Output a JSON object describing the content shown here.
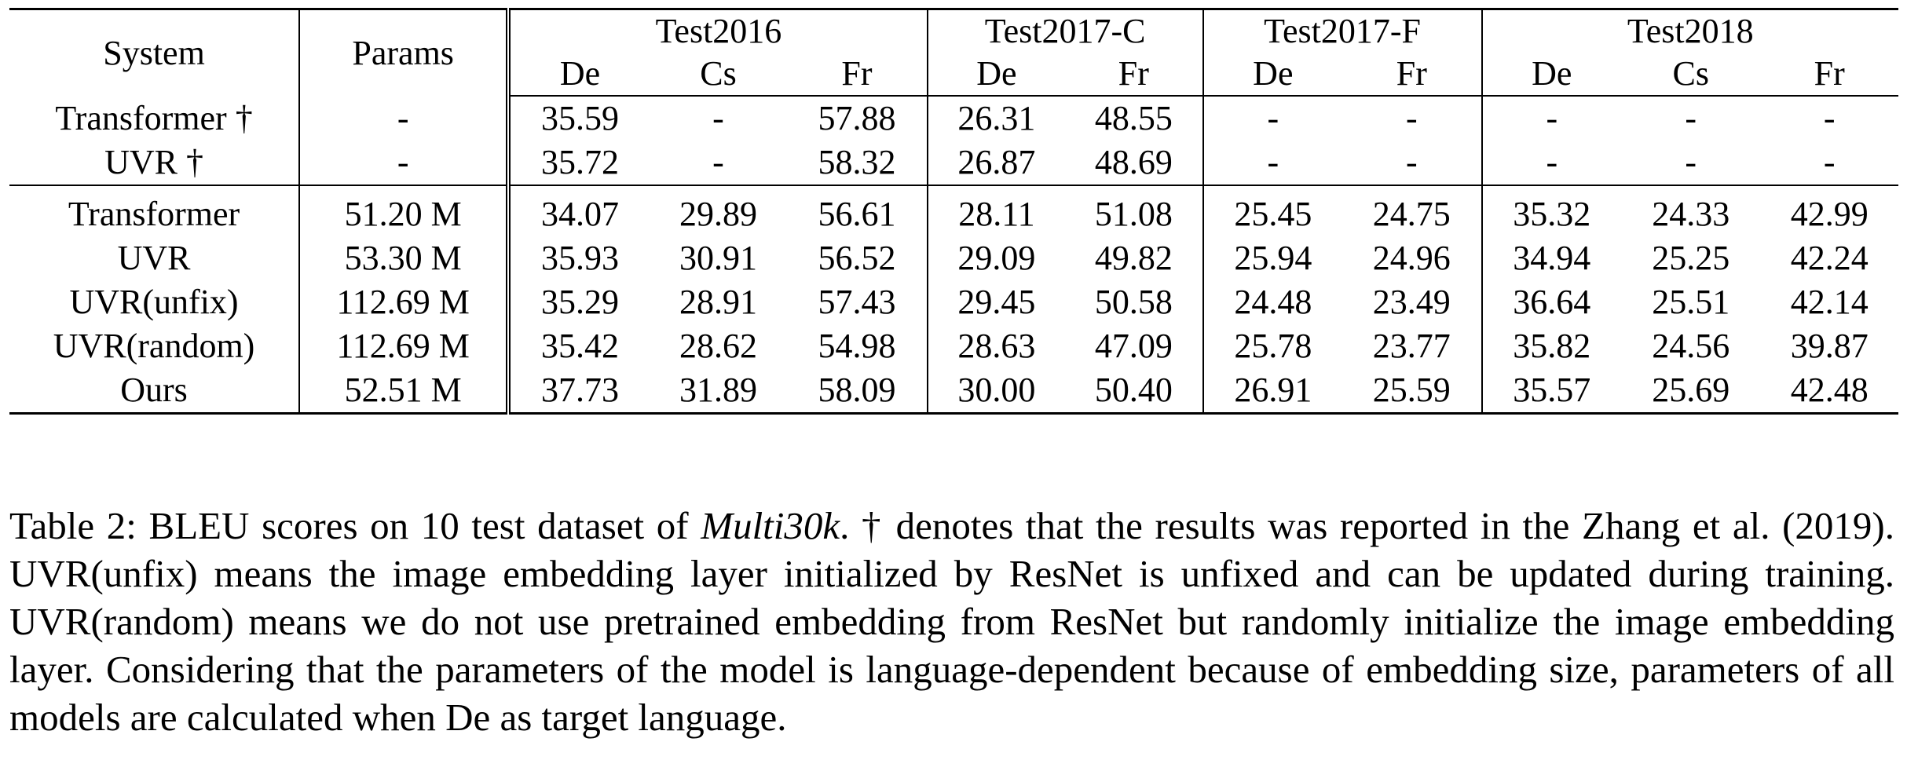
{
  "table": {
    "headers": {
      "system": "System",
      "params": "Params",
      "groups": [
        {
          "name": "Test2016",
          "langs": [
            "De",
            "Cs",
            "Fr"
          ]
        },
        {
          "name": "Test2017-C",
          "langs": [
            "De",
            "Fr"
          ]
        },
        {
          "name": "Test2017-F",
          "langs": [
            "De",
            "Fr"
          ]
        },
        {
          "name": "Test2018",
          "langs": [
            "De",
            "Cs",
            "Fr"
          ]
        }
      ]
    },
    "reported_rows": [
      {
        "system": "Transformer †",
        "params": "-",
        "scores": [
          "35.59",
          "-",
          "57.88",
          "26.31",
          "48.55",
          "-",
          "-",
          "-",
          "-",
          "-"
        ],
        "bold": []
      },
      {
        "system": "UVR †",
        "params": "-",
        "scores": [
          "35.72",
          "-",
          "58.32",
          "26.87",
          "48.69",
          "-",
          "-",
          "-",
          "-",
          "-"
        ],
        "bold": []
      }
    ],
    "rows": [
      {
        "system": "Transformer",
        "params": "51.20 M",
        "scores": [
          "34.07",
          "29.89",
          "56.61",
          "28.11",
          "51.08",
          "25.45",
          "24.75",
          "35.32",
          "24.33",
          "42.99"
        ],
        "bold": [
          4,
          9
        ]
      },
      {
        "system": "UVR",
        "params": "53.30 M",
        "scores": [
          "35.93",
          "30.91",
          "56.52",
          "29.09",
          "49.82",
          "25.94",
          "24.96",
          "34.94",
          "25.25",
          "42.24"
        ],
        "bold": []
      },
      {
        "system": "UVR(unfix)",
        "params": "112.69 M",
        "scores": [
          "35.29",
          "28.91",
          "57.43",
          "29.45",
          "50.58",
          "24.48",
          "23.49",
          "36.64",
          "25.51",
          "42.14"
        ],
        "bold": [
          7
        ]
      },
      {
        "system": "UVR(random)",
        "params": "112.69 M",
        "scores": [
          "35.42",
          "28.62",
          "54.98",
          "28.63",
          "47.09",
          "25.78",
          "23.77",
          "35.82",
          "24.56",
          "39.87"
        ],
        "bold": []
      },
      {
        "system": "Ours",
        "params": "52.51 M",
        "scores": [
          "37.73",
          "31.89",
          "58.09",
          "30.00",
          "50.40",
          "26.91",
          "25.59",
          "35.57",
          "25.69",
          "42.48"
        ],
        "bold": [
          0,
          1,
          2,
          3,
          5,
          6,
          8
        ]
      }
    ]
  },
  "caption": {
    "part1": "Table 2: BLEU scores on 10 test dataset of ",
    "dataset": "Multi30k",
    "part2": ". † denotes that the results was reported in the Zhang et al. (2019). UVR(unfix) means the image embedding layer initialized by ResNet is unfixed and can be updated during training. UVR(random) means we do not use pretrained embedding from ResNet but randomly initialize the image embedding layer. Considering that the parameters of the model is language-dependent because of embedding size, parameters of all models are calculated when De as target language."
  }
}
